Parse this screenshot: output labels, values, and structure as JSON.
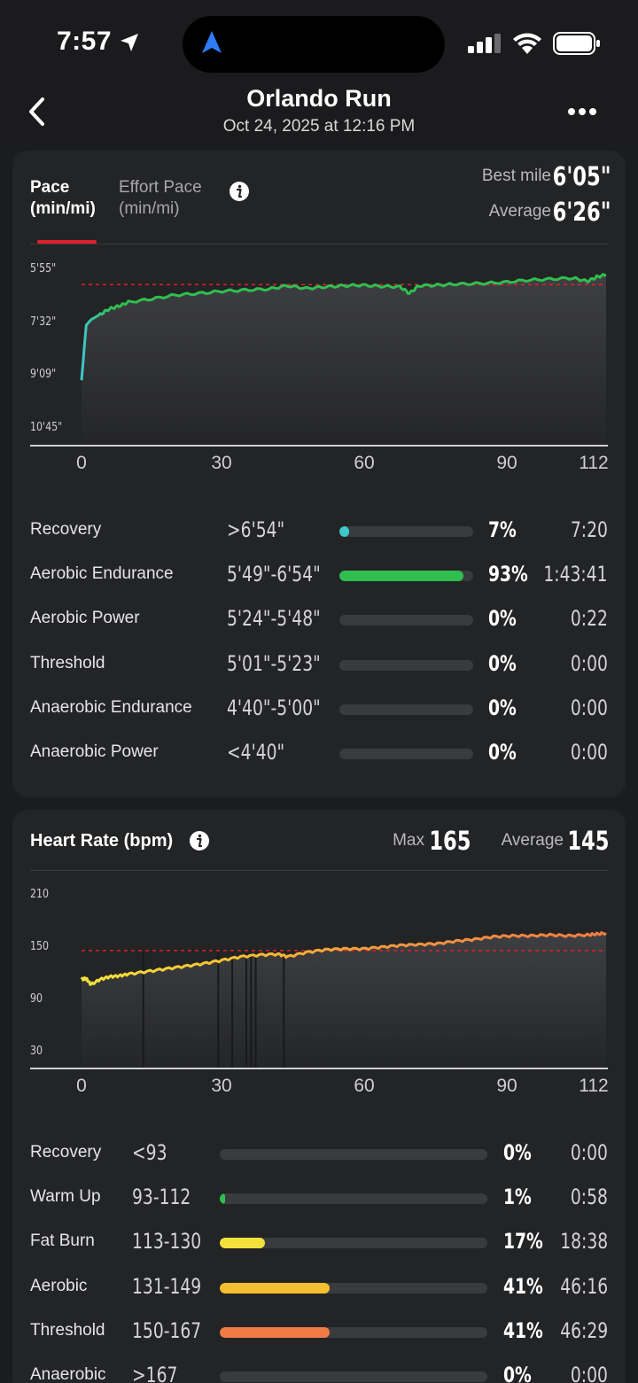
{
  "status_bar": {
    "time": "7:57"
  },
  "header": {
    "title": "Orlando Run",
    "subtitle": "Oct 24, 2025 at 12:16 PM"
  },
  "pace_card": {
    "tabs": [
      {
        "line1": "Pace",
        "line2": "(min/mi)"
      },
      {
        "line1": "Effort Pace",
        "line2": "(min/mi)"
      }
    ],
    "best_label": "Best mile",
    "best_value": "6'05\"",
    "avg_label": "Average",
    "avg_value": "6'26\"",
    "y_ticks": [
      "5'55\"",
      "7'32\"",
      "9'09\"",
      "10'45\""
    ],
    "x_ticks": [
      "0",
      "30",
      "60",
      "90",
      "112"
    ],
    "zones": [
      {
        "name": "Recovery",
        "range": ">6'54\"",
        "pct": "7%",
        "time": "7:20",
        "fill": 0.07,
        "color": "#3fc7c9"
      },
      {
        "name": "Aerobic Endurance",
        "range": "5'49\"-6'54\"",
        "pct": "93%",
        "time": "1:43:41",
        "fill": 0.93,
        "color": "#2fbf4f"
      },
      {
        "name": "Aerobic Power",
        "range": "5'24\"-5'48\"",
        "pct": "0%",
        "time": "0:22",
        "fill": 0.0,
        "color": "#9be04a"
      },
      {
        "name": "Threshold",
        "range": "5'01\"-5'23\"",
        "pct": "0%",
        "time": "0:00",
        "fill": 0.0,
        "color": "#f2c230"
      },
      {
        "name": "Anaerobic Endurance",
        "range": "4'40\"-5'00\"",
        "pct": "0%",
        "time": "0:00",
        "fill": 0.0,
        "color": "#f08040"
      },
      {
        "name": "Anaerobic Power",
        "range": "<4'40\"",
        "pct": "0%",
        "time": "0:00",
        "fill": 0.0,
        "color": "#e03030"
      }
    ]
  },
  "hr_card": {
    "title": "Heart Rate (bpm)",
    "max_label": "Max",
    "max_value": "165",
    "avg_label": "Average",
    "avg_value": "145",
    "y_ticks": [
      "210",
      "150",
      "90",
      "30"
    ],
    "x_ticks": [
      "0",
      "30",
      "60",
      "90",
      "112"
    ],
    "zones": [
      {
        "name": "Recovery",
        "range": "<93",
        "pct": "0%",
        "time": "0:00",
        "fill": 0.0,
        "color": "#8a8a8c"
      },
      {
        "name": "Warm Up",
        "range": "93-112",
        "pct": "1%",
        "time": "0:58",
        "fill": 0.01,
        "color": "#2fbf4f"
      },
      {
        "name": "Fat Burn",
        "range": "113-130",
        "pct": "17%",
        "time": "18:38",
        "fill": 0.17,
        "color": "#f3e23c"
      },
      {
        "name": "Aerobic",
        "range": "131-149",
        "pct": "41%",
        "time": "46:16",
        "fill": 0.41,
        "color": "#f6bf2f"
      },
      {
        "name": "Threshold",
        "range": "150-167",
        "pct": "41%",
        "time": "46:29",
        "fill": 0.41,
        "color": "#f27a45"
      },
      {
        "name": "Anaerobic",
        "range": ">167",
        "pct": "0%",
        "time": "0:00",
        "fill": 0.0,
        "color": "#e03030"
      }
    ]
  },
  "chart_data": [
    {
      "type": "line",
      "ylabel": "Pace (min/mi)",
      "x_range": [
        0,
        112
      ],
      "y_ticks": [
        "5'55\"",
        "7'32\"",
        "9'09\"",
        "10'45\""
      ],
      "average_line": "6'26\"",
      "series": [
        {
          "x": [
            0,
            1,
            2,
            4,
            6,
            8,
            10,
            15,
            20,
            25,
            30,
            35,
            40,
            44,
            48,
            52,
            56,
            60,
            64,
            68,
            70,
            72,
            76,
            80,
            85,
            90,
            95,
            100,
            105,
            108,
            110,
            112
          ],
          "y_sec_per_mi": [
            560,
            460,
            450,
            440,
            430,
            425,
            418,
            412,
            405,
            402,
            398,
            396,
            394,
            388,
            393,
            390,
            388,
            387,
            389,
            390,
            402,
            388,
            387,
            385,
            384,
            382,
            378,
            376,
            374,
            380,
            372,
            368
          ]
        }
      ]
    },
    {
      "type": "line",
      "ylabel": "Heart Rate (bpm)",
      "x_range": [
        0,
        112
      ],
      "y_ticks": [
        210,
        150,
        90,
        30
      ],
      "y_range": [
        30,
        210
      ],
      "average_line": 145,
      "series": [
        {
          "x": [
            0,
            1,
            2,
            4,
            6,
            8,
            10,
            14,
            18,
            22,
            26,
            30,
            34,
            38,
            42,
            44,
            48,
            52,
            56,
            60,
            64,
            68,
            72,
            76,
            80,
            84,
            88,
            92,
            96,
            100,
            104,
            108,
            110,
            112
          ],
          "y": [
            112,
            113,
            106,
            112,
            115,
            116,
            118,
            121,
            124,
            127,
            130,
            134,
            138,
            140,
            141,
            138,
            143,
            146,
            147,
            147,
            149,
            151,
            152,
            153,
            156,
            158,
            161,
            162,
            162,
            163,
            162,
            163,
            164,
            165
          ]
        }
      ]
    }
  ]
}
